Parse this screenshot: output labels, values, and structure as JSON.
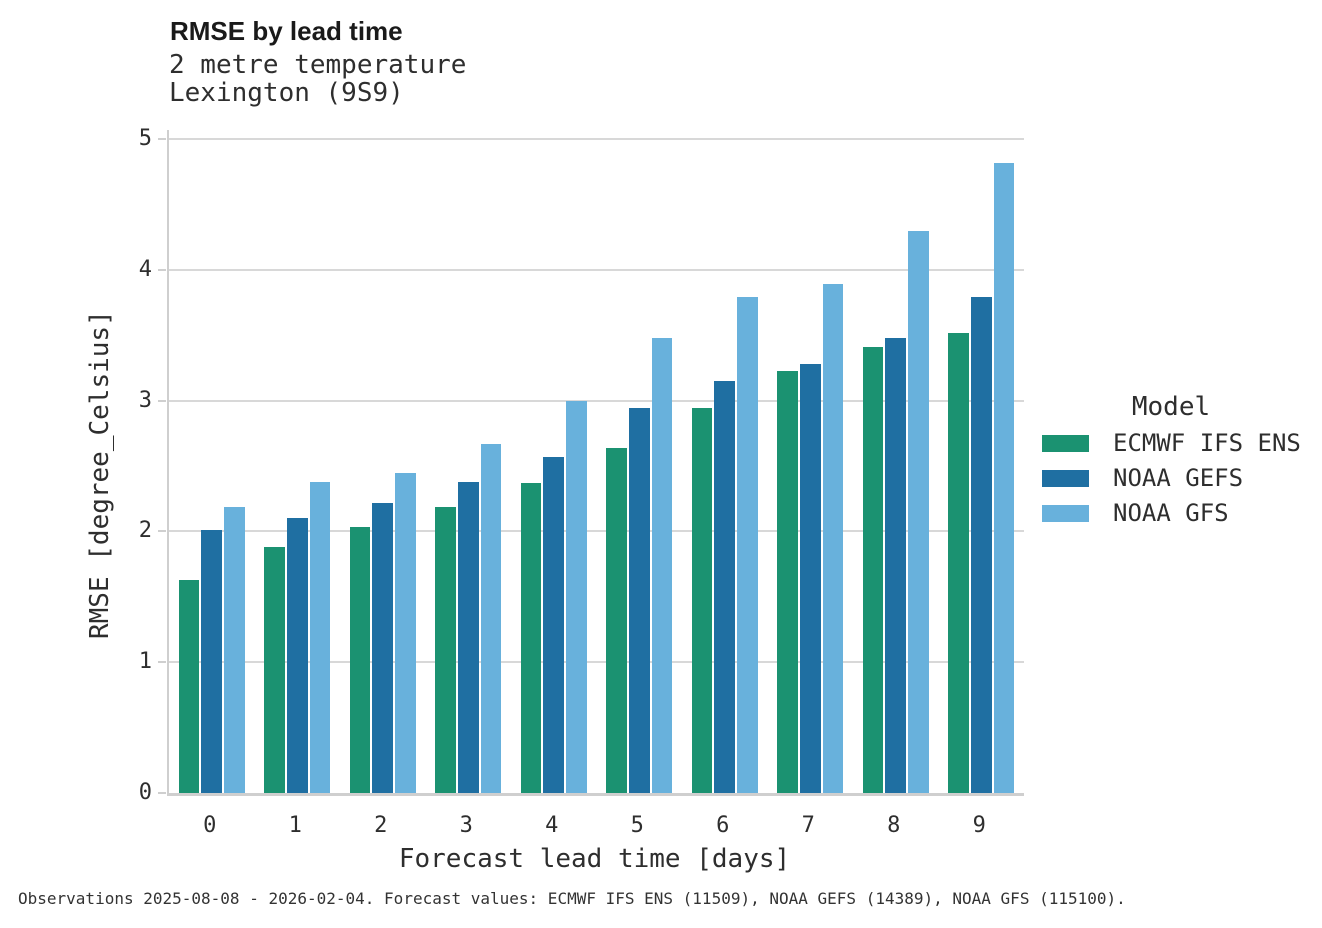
{
  "header": {
    "title": "RMSE by lead time",
    "subtitle1": "2 metre temperature",
    "subtitle2": "Lexington (9S9)"
  },
  "chart_data": {
    "type": "bar",
    "title": "RMSE by lead time",
    "subtitle": [
      "2 metre temperature",
      "Lexington (9S9)"
    ],
    "categories": [
      "0",
      "1",
      "2",
      "3",
      "4",
      "5",
      "6",
      "7",
      "8",
      "9"
    ],
    "series": [
      {
        "name": "ECMWF IFS ENS",
        "color": "#1b9271",
        "values": [
          1.63,
          1.88,
          2.03,
          2.19,
          2.37,
          2.64,
          2.94,
          3.23,
          3.41,
          3.52
        ]
      },
      {
        "name": "NOAA GEFS",
        "color": "#1f6fa2",
        "values": [
          2.01,
          2.1,
          2.22,
          2.38,
          2.57,
          2.94,
          3.15,
          3.28,
          3.48,
          3.79
        ]
      },
      {
        "name": "NOAA GFS",
        "color": "#68b1dc",
        "values": [
          2.19,
          2.38,
          2.45,
          2.67,
          3.0,
          3.48,
          3.79,
          3.89,
          4.3,
          4.82
        ]
      }
    ],
    "xlabel": "Forecast lead time [days]",
    "ylabel": "RMSE [degree_Celsius]",
    "ylim": [
      0,
      5
    ],
    "yticks": [
      0,
      1,
      2,
      3,
      4,
      5
    ],
    "grid": "horizontal",
    "legend_title": "Model",
    "legend_position": "right"
  },
  "caption": {
    "text": "Observations 2025-08-08 - 2026-02-04. Forecast values: ECMWF IFS ENS (11509), NOAA GEFS (14389), NOAA GFS (115100)."
  }
}
